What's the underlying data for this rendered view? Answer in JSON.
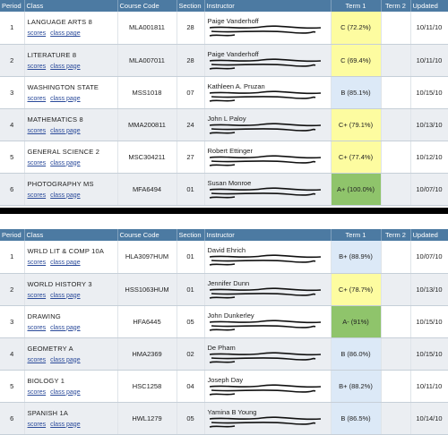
{
  "tables": [
    {
      "headers": {
        "period": "Period",
        "class": "Class",
        "course_code": "Course Code",
        "section": "Section",
        "instructor": "Instructor",
        "term1": "Term 1",
        "term2": "Term 2",
        "updated": "Updated"
      },
      "rows": [
        {
          "period": "1",
          "class": "LANGUAGE ARTS 8",
          "scores": "scores",
          "class_page": "class page",
          "course_code": "MLA001811",
          "section": "28",
          "instructor": "Paige Vanderhoff",
          "grade": "C (72.2%)",
          "grade_color": "yellow",
          "term2": "",
          "updated": "10/11/10"
        },
        {
          "period": "2",
          "class": "LITERATURE 8",
          "scores": "scores",
          "class_page": "class page",
          "course_code": "MLA007011",
          "section": "28",
          "instructor": "Paige Vanderhoff",
          "grade": "C (69.4%)",
          "grade_color": "yellow",
          "term2": "",
          "updated": "10/11/10"
        },
        {
          "period": "3",
          "class": "WASHINGTON STATE",
          "scores": "scores",
          "class_page": "class page",
          "course_code": "MSS1018",
          "section": "07",
          "instructor": "Kathleen A. Pruzan",
          "grade": "B (85.1%)",
          "grade_color": "blue",
          "term2": "",
          "updated": "10/15/10"
        },
        {
          "period": "4",
          "class": "MATHEMATICS 8",
          "scores": "scores",
          "class_page": "class page",
          "course_code": "MMA200811",
          "section": "24",
          "instructor": "John L Paloy",
          "grade": "C+ (79.1%)",
          "grade_color": "yellow",
          "term2": "",
          "updated": "10/13/10"
        },
        {
          "period": "5",
          "class": "GENERAL SCIENCE 2",
          "scores": "scores",
          "class_page": "class page",
          "course_code": "MSC304211",
          "section": "27",
          "instructor": "Robert Ettinger",
          "grade": "C+ (77.4%)",
          "grade_color": "yellow",
          "term2": "",
          "updated": "10/12/10"
        },
        {
          "period": "6",
          "class": "PHOTOGRAPHY MS",
          "scores": "scores",
          "class_page": "class page",
          "course_code": "MFA6494",
          "section": "01",
          "instructor": "Susan Monroe",
          "grade": "A+ (100.0%)",
          "grade_color": "green",
          "term2": "",
          "updated": "10/07/10"
        }
      ]
    },
    {
      "headers": {
        "period": "Period",
        "class": "Class",
        "course_code": "Course Code",
        "section": "Section",
        "instructor": "Instructor",
        "term1": "Term 1",
        "term2": "Term 2",
        "updated": "Updated"
      },
      "rows": [
        {
          "period": "1",
          "class": "WRLD LIT & COMP 10A",
          "scores": "scores",
          "class_page": "class page",
          "course_code": "HLA3097HUM",
          "section": "01",
          "instructor": "David Ehrich",
          "grade": "B+ (88.9%)",
          "grade_color": "blue",
          "term2": "",
          "updated": "10/07/10"
        },
        {
          "period": "2",
          "class": "WORLD HISTORY 3",
          "scores": "scores",
          "class_page": "class page",
          "course_code": "HSS1063HUM",
          "section": "01",
          "instructor": "Jennifer Dunn",
          "grade": "C+ (78.7%)",
          "grade_color": "yellow",
          "term2": "",
          "updated": "10/13/10"
        },
        {
          "period": "3",
          "class": "DRAWING",
          "scores": "scores",
          "class_page": "class page",
          "course_code": "HFA6445",
          "section": "05",
          "instructor": "John Dunkerley",
          "grade": "A- (91%)",
          "grade_color": "green",
          "term2": "",
          "updated": "10/15/10"
        },
        {
          "period": "4",
          "class": "GEOMETRY A",
          "scores": "scores",
          "class_page": "class page",
          "course_code": "HMA2369",
          "section": "02",
          "instructor": "De Pham",
          "grade": "B (86.0%)",
          "grade_color": "blue",
          "term2": "",
          "updated": "10/15/10"
        },
        {
          "period": "5",
          "class": "BIOLOGY 1",
          "scores": "scores",
          "class_page": "class page",
          "course_code": "HSC1258",
          "section": "04",
          "instructor": "Joseph Day",
          "grade": "B+ (88.2%)",
          "grade_color": "blue",
          "term2": "",
          "updated": "10/11/10"
        },
        {
          "period": "6",
          "class": "SPANISH 1A",
          "scores": "scores",
          "class_page": "class page",
          "course_code": "HWL1279",
          "section": "05",
          "instructor": "Yamina B Young",
          "grade": "B (86.5%)",
          "grade_color": "blue",
          "term2": "",
          "updated": "10/14/10"
        }
      ]
    }
  ]
}
